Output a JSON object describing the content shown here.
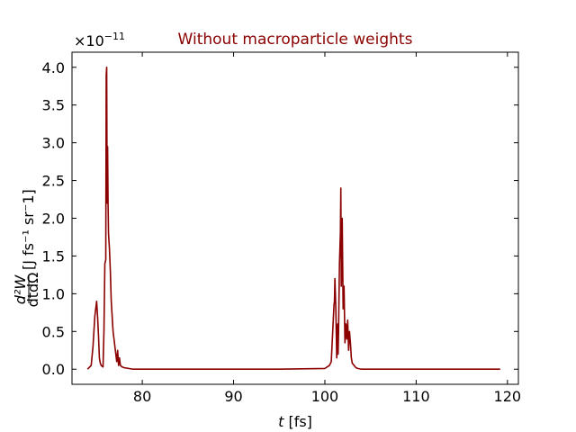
{
  "chart_data": {
    "type": "line",
    "title": "Without macroparticle weights",
    "title_color": "#8b0000",
    "line_color": "#8b0000",
    "xlabel_italic": "t",
    "xlabel_rest": " [fs]",
    "ylabel_fraction_num": "d²W",
    "ylabel_fraction_den": "dtdΩ",
    "ylabel_units": "[J fs⁻¹ sr⁻1]",
    "y_offset_base": "×10",
    "y_offset_exp": "−11",
    "xlim": [
      72.3,
      121.2
    ],
    "ylim": [
      -0.2,
      4.2
    ],
    "xticks": [
      80,
      90,
      100,
      110,
      120
    ],
    "xtick_labels": [
      "80",
      "90",
      "100",
      "110",
      "120"
    ],
    "yticks": [
      0.0,
      0.5,
      1.0,
      1.5,
      2.0,
      2.5,
      3.0,
      3.5,
      4.0
    ],
    "ytick_labels": [
      "0.0",
      "0.5",
      "1.0",
      "1.5",
      "2.0",
      "2.5",
      "3.0",
      "3.5",
      "4.0"
    ],
    "grid": false,
    "series": [
      {
        "x": [
          74.0,
          74.4,
          74.6,
          74.8,
          74.9,
          75.0,
          75.1,
          75.2,
          75.3,
          75.4,
          75.5,
          75.7,
          75.8,
          75.9,
          76.0,
          76.05,
          76.1,
          76.15,
          76.2,
          76.25,
          76.3,
          76.4,
          76.5,
          76.6,
          76.8,
          77.0,
          77.2,
          77.3,
          77.4,
          77.5,
          77.6,
          77.8,
          78.0,
          78.5,
          79.0,
          80.0,
          85.0,
          90.0,
          95.0,
          100.0,
          100.5,
          100.7,
          100.9,
          101.0,
          101.05,
          101.1,
          101.2,
          101.3,
          101.4,
          101.45,
          101.5,
          101.6,
          101.7,
          101.75,
          101.8,
          101.85,
          101.9,
          102.0,
          102.1,
          102.2,
          102.3,
          102.4,
          102.5,
          102.6,
          102.7,
          102.8,
          102.9,
          103.0,
          103.2,
          103.4,
          103.6,
          104.0,
          105.0,
          110.0,
          115.0,
          119.2
        ],
        "y": [
          0.0,
          0.05,
          0.3,
          0.7,
          0.8,
          0.9,
          0.7,
          0.45,
          0.15,
          0.08,
          0.05,
          0.03,
          0.5,
          1.4,
          1.45,
          3.9,
          4.0,
          2.2,
          2.95,
          2.2,
          1.8,
          1.6,
          1.3,
          0.9,
          0.5,
          0.3,
          0.1,
          0.25,
          0.05,
          0.15,
          0.05,
          0.03,
          0.02,
          0.01,
          0.0,
          0.0,
          0.0,
          0.0,
          0.0,
          0.01,
          0.05,
          0.1,
          0.6,
          0.85,
          0.9,
          1.2,
          0.8,
          0.15,
          0.6,
          0.2,
          0.5,
          1.4,
          1.8,
          2.4,
          1.1,
          1.5,
          2.0,
          0.8,
          1.1,
          0.35,
          0.6,
          0.4,
          0.65,
          0.25,
          0.5,
          0.35,
          0.15,
          0.08,
          0.05,
          0.02,
          0.01,
          0.0,
          0.0,
          0.0,
          0.0,
          0.0
        ]
      }
    ]
  }
}
